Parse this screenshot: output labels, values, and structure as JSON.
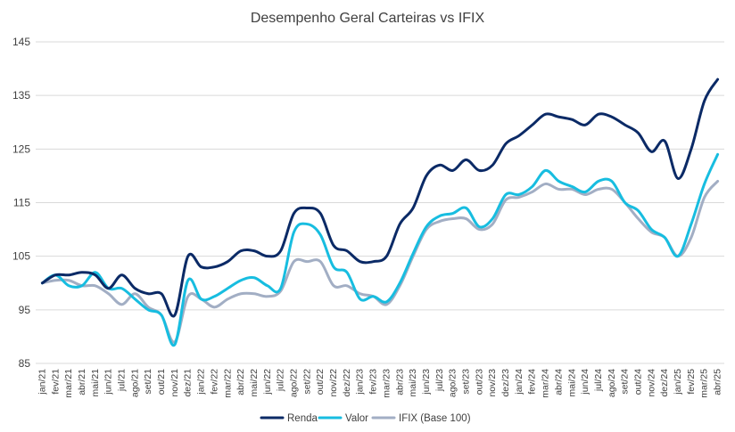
{
  "chart_data": {
    "type": "line",
    "title": "Desempenho Geral Carteiras vs IFIX",
    "xlabel": "",
    "ylabel": "",
    "ylim": [
      85,
      145
    ],
    "yticks": [
      85,
      95,
      105,
      115,
      125,
      135,
      145
    ],
    "grid": true,
    "legend_position": "bottom",
    "x": [
      "jan/21",
      "fev/21",
      "mar/21",
      "abr/21",
      "mai/21",
      "jun/21",
      "jul/21",
      "ago/21",
      "set/21",
      "out/21",
      "nov/21",
      "dez/21",
      "jan/22",
      "fev/22",
      "mar/22",
      "abr/22",
      "mai/22",
      "jun/22",
      "jul/22",
      "ago/22",
      "set/22",
      "out/22",
      "nov/22",
      "dez/22",
      "jan/23",
      "fev/23",
      "mar/23",
      "abr/23",
      "mai/23",
      "jun/23",
      "jul/23",
      "ago/23",
      "set/23",
      "out/23",
      "nov/23",
      "dez/23",
      "jan/24",
      "fev/24",
      "mar/24",
      "abr/24",
      "mai/24",
      "jun/24",
      "jul/24",
      "ago/24",
      "set/24",
      "out/24",
      "nov/24",
      "dez/24",
      "jan/25",
      "fev/25",
      "mar/25",
      "abr/25"
    ],
    "series": [
      {
        "name": "Renda",
        "color": "#0b2a66",
        "values": [
          100,
          101.5,
          101.5,
          102,
          101.5,
          99,
          101.5,
          99,
          98,
          98,
          94,
          105,
          103,
          103,
          104,
          106,
          106,
          105,
          106,
          113,
          114,
          113,
          107,
          106,
          104,
          104,
          105,
          111,
          114,
          120,
          122,
          121,
          123,
          121,
          122,
          126,
          127.5,
          129.5,
          131.5,
          131,
          130.5,
          129.5,
          131.5,
          131,
          129.5,
          128,
          124.5,
          126.5,
          119.5,
          125,
          134,
          138
        ]
      },
      {
        "name": "Valor",
        "color": "#17bde0",
        "values": [
          100,
          101.5,
          99.5,
          99.5,
          102,
          99,
          99,
          97,
          95,
          94,
          88.5,
          100.5,
          97,
          97.5,
          99,
          100.5,
          101,
          99.5,
          99,
          109.5,
          111,
          109,
          103,
          102,
          97,
          97.5,
          96.5,
          100,
          105.5,
          110.5,
          112.5,
          113,
          114,
          110.5,
          112,
          116.5,
          116.5,
          118,
          121,
          119,
          118,
          117,
          119,
          119,
          115,
          113.5,
          110,
          108.5,
          105,
          111,
          118.5,
          124
        ]
      },
      {
        "name": "IFIX (Base 100)",
        "color": "#a2aec4",
        "values": [
          100,
          100.5,
          100.5,
          99.5,
          99.5,
          98,
          96,
          98,
          95.5,
          94,
          89,
          97.5,
          97,
          95.5,
          97,
          98,
          98,
          97.5,
          98.5,
          104,
          104,
          104,
          99.5,
          99.5,
          98,
          97.5,
          96,
          99.5,
          105,
          110,
          111.5,
          112,
          112,
          110,
          111,
          115.5,
          116,
          117,
          118.5,
          117.5,
          117.5,
          116.5,
          117.5,
          117.5,
          115,
          112,
          109.5,
          108.5,
          105,
          108.5,
          116,
          119
        ]
      }
    ]
  }
}
